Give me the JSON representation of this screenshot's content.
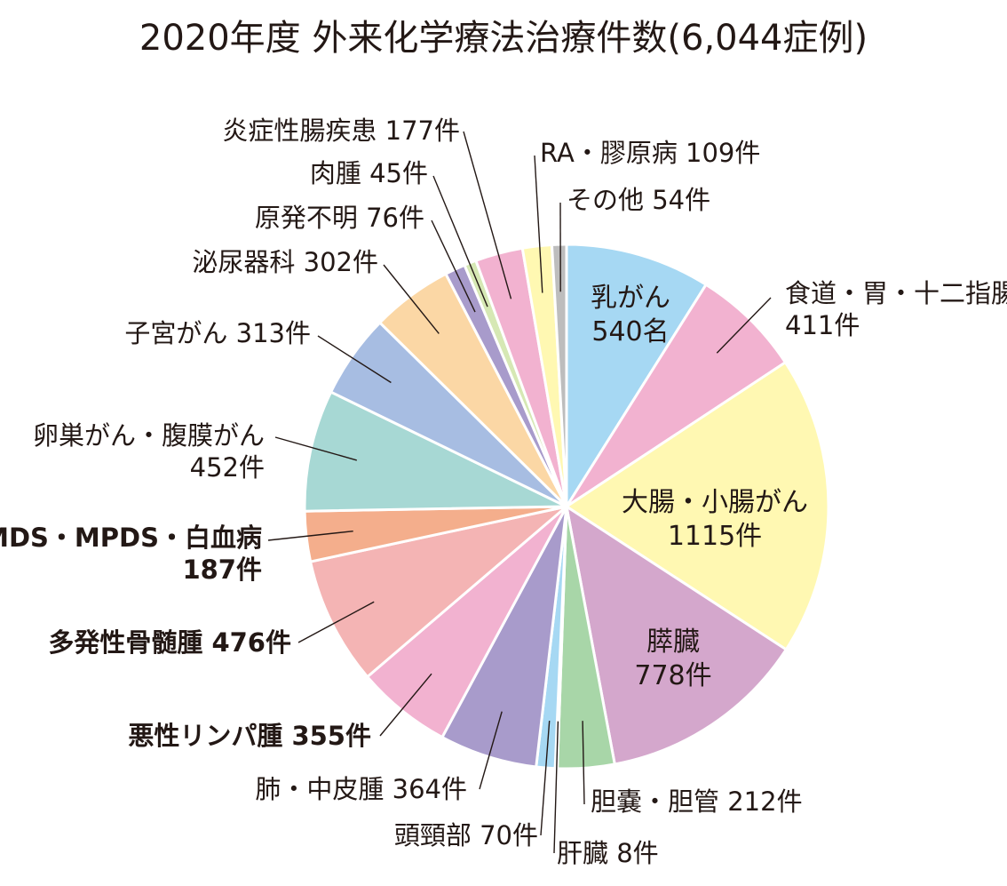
{
  "title": "2020年度 外来化学療法治療件数(6,044症例)",
  "chart_data": {
    "type": "pie",
    "title": "2020年度 外来化学療法治療件数(6,044症例)",
    "total_label": "6,044症例",
    "slices": [
      {
        "label": "乳がん",
        "value": 540,
        "value_text": "540名",
        "color": "#a6d8f3",
        "inside": true
      },
      {
        "label": "食道・胃・十二指腸",
        "value": 411,
        "value_text": "411件",
        "color": "#f2b2d0"
      },
      {
        "label": "大腸・小腸がん",
        "value": 1115,
        "value_text": "1115件",
        "color": "#fff8b2",
        "inside": true
      },
      {
        "label": "膵臓",
        "value": 778,
        "value_text": "778件",
        "color": "#d4a7cc",
        "inside": true
      },
      {
        "label": "胆嚢・胆管",
        "value": 212,
        "value_text": "212件",
        "color": "#a8d6a8"
      },
      {
        "label": "肝臓",
        "value": 8,
        "value_text": "8件",
        "color": "#9ed3ee"
      },
      {
        "label": "頭頸部",
        "value": 70,
        "value_text": "70件",
        "color": "#a6d8f3"
      },
      {
        "label": "肺・中皮腫",
        "value": 364,
        "value_text": "364件",
        "color": "#a89bcb"
      },
      {
        "label": "悪性リンパ腫",
        "value": 355,
        "value_text": "355件",
        "color": "#f2b2d0",
        "bold": true
      },
      {
        "label": "多発性骨髄腫",
        "value": 476,
        "value_text": "476件",
        "color": "#f4b4b4",
        "bold": true
      },
      {
        "label": "MDS・MPDS・白血病",
        "value": 187,
        "value_text": "187件",
        "color": "#f4ae8c",
        "bold": true
      },
      {
        "label": "卵巣がん・腹膜がん",
        "value": 452,
        "value_text": "452件",
        "color": "#a7d8d4"
      },
      {
        "label": "子宮がん",
        "value": 313,
        "value_text": "313件",
        "color": "#a7bde2"
      },
      {
        "label": "泌尿器科",
        "value": 302,
        "value_text": "302件",
        "color": "#fbd7a5"
      },
      {
        "label": "原発不明",
        "value": 76,
        "value_text": "76件",
        "color": "#a89bcb"
      },
      {
        "label": "肉腫",
        "value": 45,
        "value_text": "45件",
        "color": "#d6e8b4"
      },
      {
        "label": "炎症性腸疾患",
        "value": 177,
        "value_text": "177件",
        "color": "#f2b2d0"
      },
      {
        "label": "RA・膠原病",
        "value": 109,
        "value_text": "109件",
        "color": "#fff8b2"
      },
      {
        "label": "その他",
        "value": 54,
        "value_text": "54件",
        "color": "#bdbdbd"
      }
    ]
  }
}
